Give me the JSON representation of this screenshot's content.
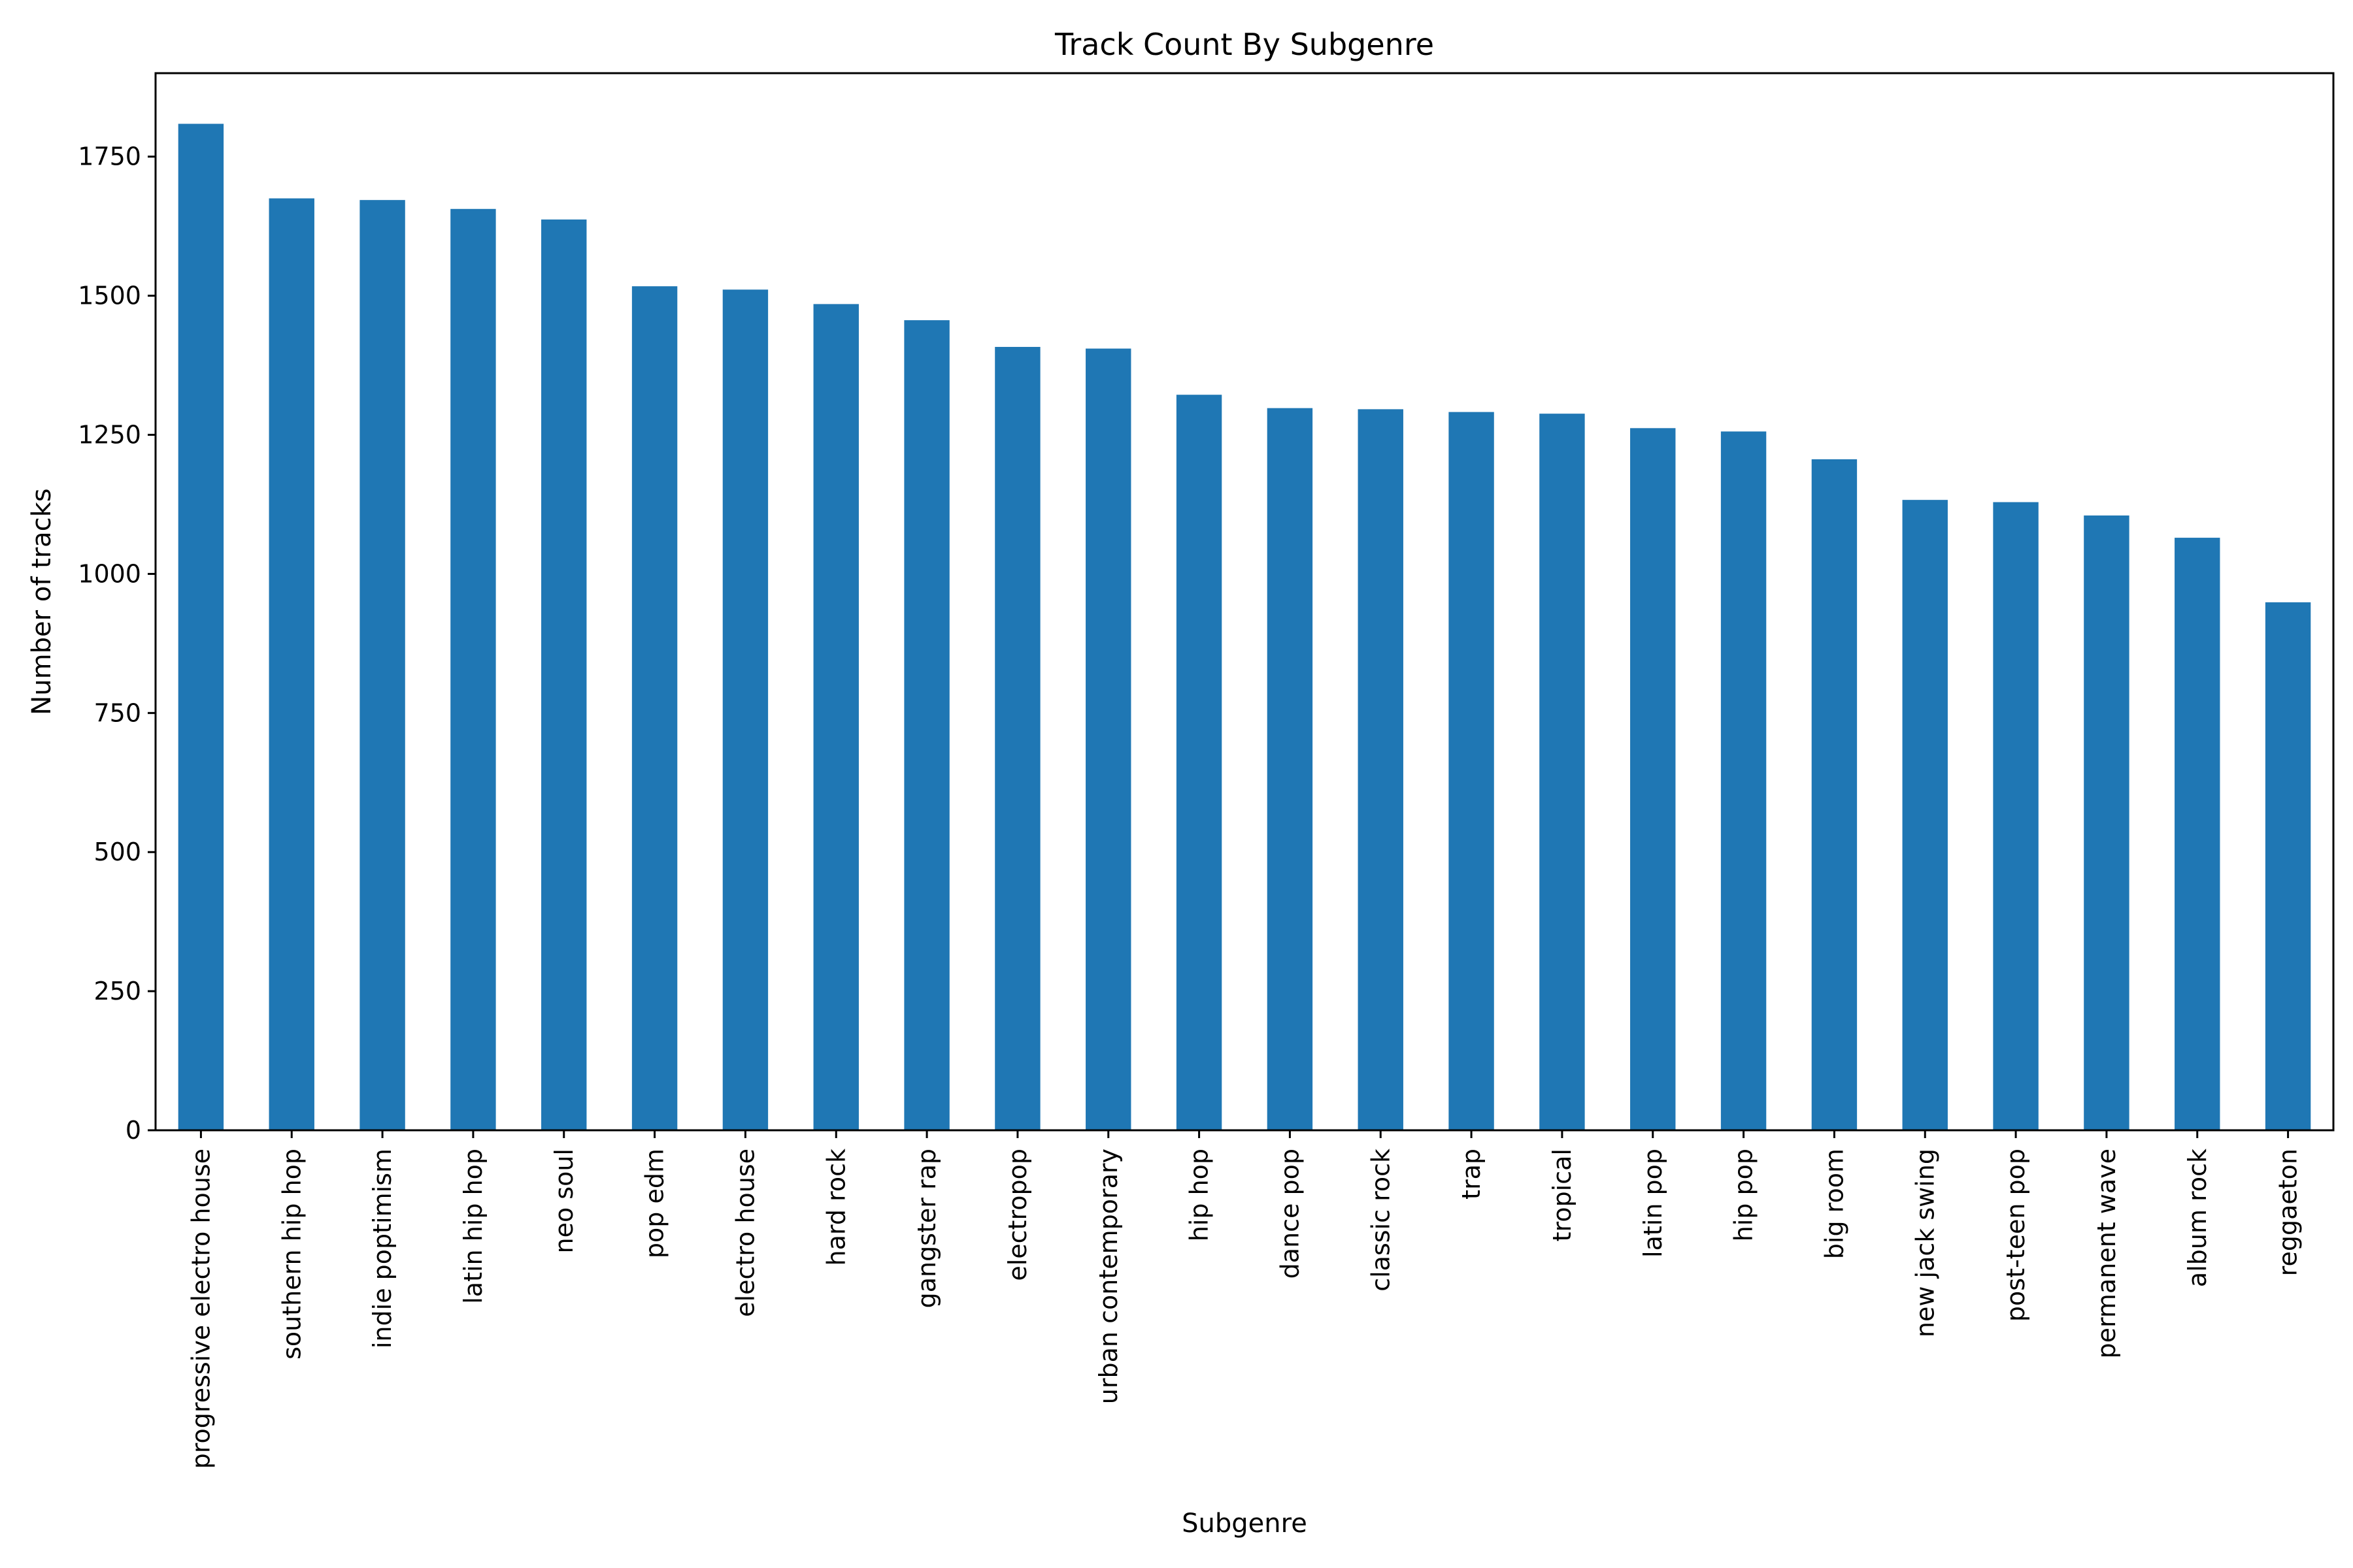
{
  "chart_data": {
    "type": "bar",
    "title": "Track Count By Subgenre",
    "xlabel": "Subgenre",
    "ylabel": "Number of tracks",
    "ylim": [
      0,
      1900
    ],
    "yticks": [
      0,
      250,
      500,
      750,
      1000,
      1250,
      1500,
      1750
    ],
    "grid": false,
    "bar_color": "#1f77b4",
    "categories": [
      "progressive electro house",
      "southern hip hop",
      "indie poptimism",
      "latin hip hop",
      "neo soul",
      "pop edm",
      "electro house",
      "hard rock",
      "gangster rap",
      "electropop",
      "urban contemporary",
      "hip hop",
      "dance pop",
      "classic rock",
      "trap",
      "tropical",
      "latin pop",
      "hip pop",
      "big room",
      "new jack swing",
      "post-teen pop",
      "permanent wave",
      "album rock",
      "reggaeton"
    ],
    "values": [
      1809,
      1675,
      1672,
      1656,
      1637,
      1517,
      1511,
      1485,
      1456,
      1408,
      1405,
      1322,
      1298,
      1296,
      1291,
      1288,
      1262,
      1256,
      1206,
      1133,
      1129,
      1105,
      1065,
      949
    ]
  }
}
